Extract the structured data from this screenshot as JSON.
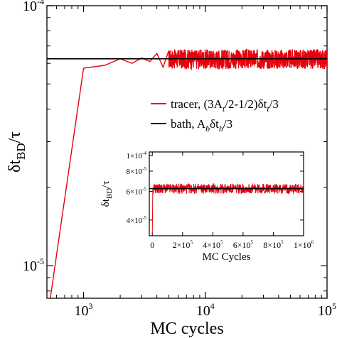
{
  "chart_data": [
    {
      "type": "line",
      "name": "main",
      "xlabel": "MC cycles",
      "xscale": "log",
      "yscale": "log",
      "xlim": [
        500,
        100000
      ],
      "ylim": [
        7.5e-06,
        0.0001
      ],
      "grid": false,
      "legend_position": "right",
      "ylabel": {
        "main": "δt",
        "sub": "BD",
        "tail": "/τ"
      },
      "x_ticks": [
        {
          "value": 1000,
          "base": "10",
          "exp": "3"
        },
        {
          "value": 10000,
          "base": "10",
          "exp": "4"
        },
        {
          "value": 100000,
          "base": "10",
          "exp": "5"
        }
      ],
      "y_ticks": [
        {
          "value": 1e-05,
          "base": "10",
          "exp": "-5"
        },
        {
          "value": 0.0001,
          "base": "10",
          "exp": "-4"
        }
      ],
      "series": [
        {
          "name": "tracer",
          "legend": {
            "pre": "tracer, (3A",
            "sub1": "t",
            "mid": "/2-1/2)δt",
            "sub2": "t",
            "post": "/3"
          },
          "color": "#e8000b",
          "x": [
            500,
            1000,
            1500,
            2000,
            2500,
            3000,
            3500,
            4000,
            4500,
            5000,
            5500,
            6000,
            7000,
            8000,
            9000,
            10000,
            12000,
            15000,
            20000,
            30000,
            50000,
            70000,
            100000
          ],
          "y": [
            6.1e-06,
            5.75e-05,
            5.9e-05,
            6.25e-05,
            6e-05,
            6.3e-05,
            6.1e-05,
            6.55e-05,
            5.8e-05,
            6.7e-05,
            5.9e-05,
            6.45e-05,
            5.8e-05,
            6.6e-05,
            5.85e-05,
            6.55e-05,
            5.75e-05,
            6.65e-05,
            5.75e-05,
            6.7e-05,
            5.7e-05,
            6.75e-05,
            6.2e-05
          ],
          "noise": {
            "from": 5000,
            "to": 100000,
            "center": 6.25e-05,
            "amplitude": 5.5e-06
          }
        },
        {
          "name": "bath",
          "legend": {
            "pre": "bath, A",
            "sub1": "b",
            "mid": "δt",
            "sub2": "b",
            "post": "/3"
          },
          "color": "#000000",
          "x": [
            500,
            100000
          ],
          "y": [
            6.25e-05,
            6.25e-05
          ]
        }
      ]
    },
    {
      "type": "line",
      "name": "inset",
      "xlabel": "MC Cycles",
      "xscale": "linear",
      "yscale": "log",
      "xlim": [
        -20000,
        1000000
      ],
      "ylim": [
        3.2e-05,
        0.000105
      ],
      "ylabel": {
        "main": "δt",
        "sub": "BD",
        "tail": "/τ"
      },
      "x_ticks": [
        {
          "value": 0,
          "label": "0"
        },
        {
          "value": 200000,
          "base": "2×10",
          "exp": "5"
        },
        {
          "value": 400000,
          "base": "4×10",
          "exp": "5"
        },
        {
          "value": 600000,
          "base": "6×10",
          "exp": "5"
        },
        {
          "value": 800000,
          "base": "8×10",
          "exp": "5"
        },
        {
          "value": 1000000,
          "base": "1×10",
          "exp": "6"
        }
      ],
      "y_ticks": [
        {
          "value": 4e-05,
          "base": "4×10",
          "exp": "-5"
        },
        {
          "value": 6e-05,
          "base": "6×10",
          "exp": "-5"
        },
        {
          "value": 8e-05,
          "base": "8×10",
          "exp": "-5"
        },
        {
          "value": 0.0001,
          "base": "1×10",
          "exp": "-4"
        }
      ],
      "series": [
        {
          "color": "#e8000b",
          "x": [
            0,
            3000,
            6000,
            10000
          ],
          "y": [
            3.3e-05,
            6.2e-05,
            5.8e-05,
            6.6e-05
          ],
          "noise": {
            "from": 10000,
            "to": 1000000,
            "center": 6.25e-05,
            "amplitude": 4.5e-06
          }
        },
        {
          "color": "#000000",
          "x": [
            -20000,
            1000000
          ],
          "y": [
            6.25e-05,
            6.25e-05
          ]
        }
      ]
    }
  ]
}
